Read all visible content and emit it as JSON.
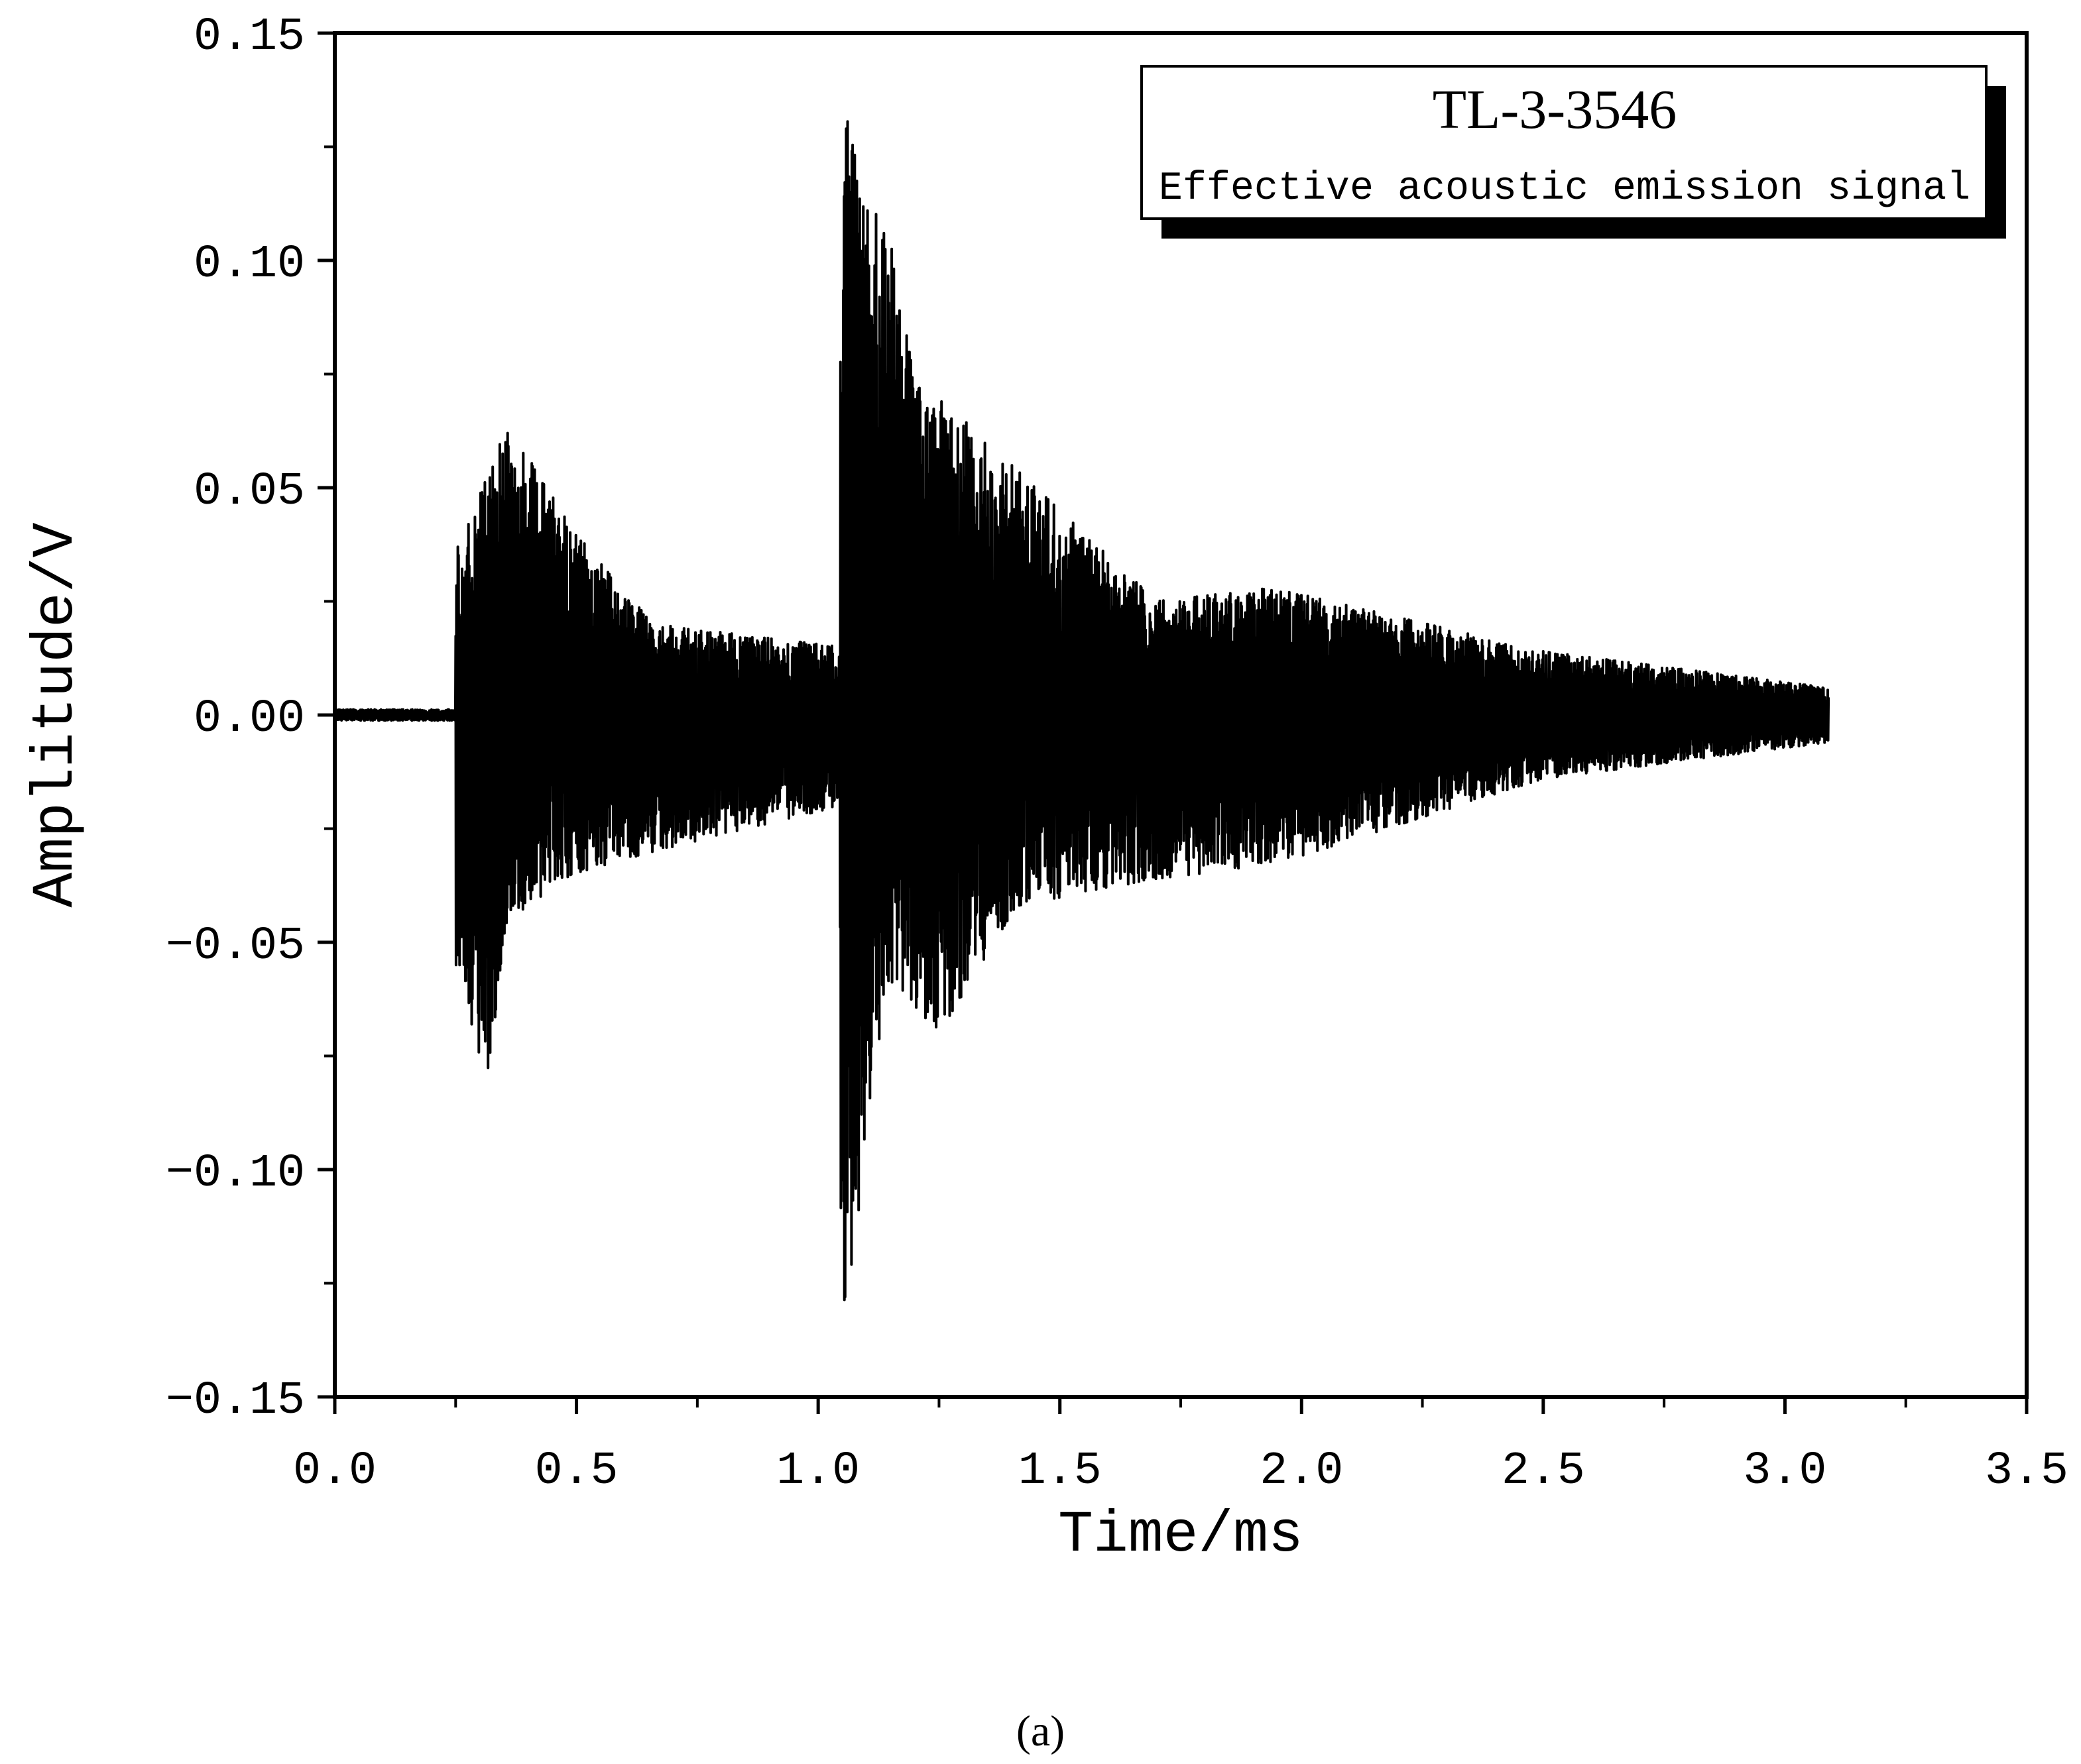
{
  "chart_data": {
    "type": "line",
    "xlabel": "Time/ms",
    "ylabel": "Amplitude/V",
    "xlim": [
      0.0,
      3.5
    ],
    "ylim": [
      -0.15,
      0.15
    ],
    "x_ticks": [
      "0.0",
      "0.5",
      "1.0",
      "1.5",
      "2.0",
      "2.5",
      "3.0",
      "3.5"
    ],
    "y_ticks": [
      "−0.15",
      "−0.10",
      "−0.05",
      "0.00",
      "0.05",
      "0.10",
      "0.15"
    ],
    "x_tick_values": [
      0.0,
      0.5,
      1.0,
      1.5,
      2.0,
      2.5,
      3.0,
      3.5
    ],
    "y_tick_values": [
      -0.15,
      -0.1,
      -0.05,
      0.0,
      0.05,
      0.1,
      0.15
    ],
    "grid": false,
    "legend_placement": "top-right",
    "legend": {
      "title": "TL-3-3546",
      "subtitle": "Effective acoustic emission signal"
    },
    "series": [
      {
        "color": "#000000",
        "x_range": [
          0.0,
          3.09
        ],
        "peaks": [
          {
            "x": 0.26,
            "max": 0.037,
            "min": -0.055
          },
          {
            "x": 0.31,
            "max": 0.052,
            "min": -0.083
          },
          {
            "x": 0.36,
            "max": 0.064,
            "min": -0.045
          },
          {
            "x": 0.49,
            "max": 0.041,
            "min": -0.035
          },
          {
            "x": 0.66,
            "max": 0.02,
            "min": -0.03
          },
          {
            "x": 1.06,
            "max": 0.131,
            "min": -0.132
          },
          {
            "x": 1.1,
            "max": 0.111,
            "min": -0.093
          },
          {
            "x": 1.14,
            "max": 0.11,
            "min": -0.06
          },
          {
            "x": 1.2,
            "max": 0.073,
            "min": -0.064
          },
          {
            "x": 1.25,
            "max": 0.07,
            "min": -0.07
          },
          {
            "x": 1.41,
            "max": 0.054,
            "min": -0.042
          },
          {
            "x": 1.7,
            "max": 0.025,
            "min": -0.036
          },
          {
            "x": 1.94,
            "max": 0.028,
            "min": -0.033
          },
          {
            "x": 2.5,
            "max": 0.014,
            "min": -0.014
          },
          {
            "x": 3.09,
            "max": 0.006,
            "min": -0.006
          }
        ]
      }
    ]
  },
  "panel_label": "(a)"
}
